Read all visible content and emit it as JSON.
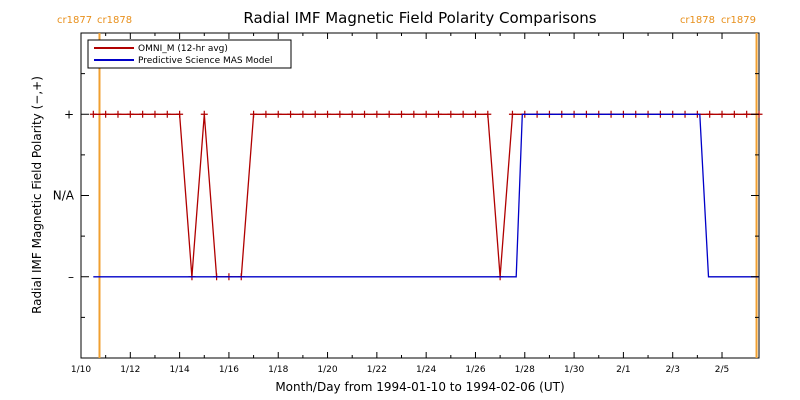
{
  "chart_data": {
    "type": "line",
    "title": "Radial IMF Magnetic Field Polarity Comparisons",
    "xlabel": "Month/Day from 1994-01-10 to 1994-02-06 (UT)",
    "ylabel": "Radial IMF Magnetic Field Polarity (−,+)",
    "xlim": [
      0,
      27.5
    ],
    "ylim": [
      -2,
      2
    ],
    "x_ticks": [
      {
        "x": 0,
        "label": "1/10"
      },
      {
        "x": 2,
        "label": "1/12"
      },
      {
        "x": 4,
        "label": "1/14"
      },
      {
        "x": 6,
        "label": "1/16"
      },
      {
        "x": 8,
        "label": "1/18"
      },
      {
        "x": 10,
        "label": "1/20"
      },
      {
        "x": 12,
        "label": "1/22"
      },
      {
        "x": 14,
        "label": "1/24"
      },
      {
        "x": 16,
        "label": "1/26"
      },
      {
        "x": 18,
        "label": "1/28"
      },
      {
        "x": 20,
        "label": "1/30"
      },
      {
        "x": 22,
        "label": "2/1"
      },
      {
        "x": 24,
        "label": "2/3"
      },
      {
        "x": 26,
        "label": "2/5"
      }
    ],
    "y_ticks": [
      {
        "y": 1,
        "label": "+"
      },
      {
        "y": 0,
        "label": "N/A"
      },
      {
        "y": -1,
        "label": "–"
      }
    ],
    "grid": false,
    "legend_position": "top-left",
    "carrington_markers": [
      {
        "x": 0.75,
        "labels": [
          "cr1877",
          "cr1878"
        ],
        "align": "left"
      },
      {
        "x": 27.4,
        "labels": [
          "cr1878",
          "cr1879"
        ],
        "align": "right"
      }
    ],
    "series": [
      {
        "name": "OMNI_M (12-hr avg)",
        "color": "#b00000",
        "marker": "+",
        "x": [
          0.5,
          1.0,
          1.5,
          2.0,
          2.5,
          3.0,
          3.5,
          4.0,
          4.5,
          5.0,
          5.5,
          6.0,
          6.5,
          7.0,
          7.5,
          8.0,
          8.5,
          9.0,
          9.5,
          10.0,
          10.5,
          11.0,
          11.5,
          12.0,
          12.5,
          13.0,
          13.5,
          14.0,
          14.5,
          15.0,
          15.5,
          16.0,
          16.5,
          17.0,
          17.5,
          18.0,
          18.5,
          19.0,
          19.5,
          20.0,
          20.5,
          21.0,
          21.5,
          22.0,
          22.5,
          23.0,
          23.5,
          24.0,
          24.5,
          25.0,
          25.5,
          26.0,
          26.5,
          27.0,
          27.5
        ],
        "y": [
          1,
          1,
          1,
          1,
          1,
          1,
          1,
          1,
          -1,
          1,
          -1,
          -1,
          -1,
          1,
          1,
          1,
          1,
          1,
          1,
          1,
          1,
          1,
          1,
          1,
          1,
          1,
          1,
          1,
          1,
          1,
          1,
          1,
          1,
          -1,
          1,
          1,
          1,
          1,
          1,
          1,
          1,
          1,
          1,
          1,
          1,
          1,
          1,
          1,
          1,
          1,
          1,
          1,
          1,
          1,
          1
        ]
      },
      {
        "name": "Predictive Science MAS Model",
        "color": "#0000c8",
        "marker": "none",
        "x": [
          0.5,
          17.65,
          17.9,
          25.1,
          25.45,
          27.5
        ],
        "y": [
          -1,
          -1,
          1,
          1,
          -1,
          -1
        ]
      }
    ]
  }
}
